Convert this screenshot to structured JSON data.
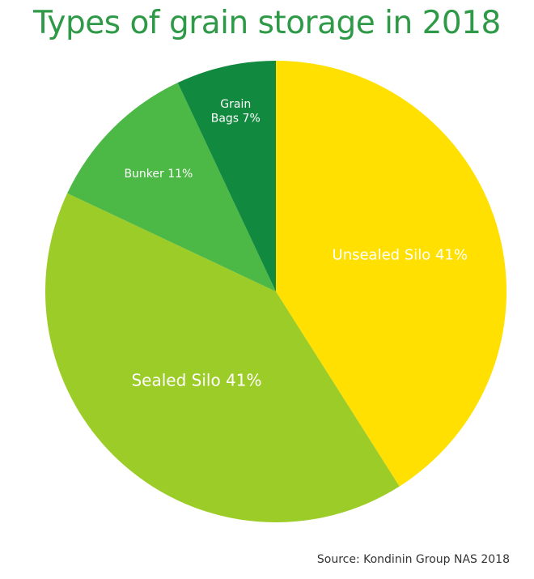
{
  "chart_data": {
    "type": "pie",
    "title": "Types of grain storage in 2018",
    "slices": [
      {
        "label": "Unsealed Silo",
        "value": 41,
        "display": "Unsealed Silo 41%",
        "color": "#ffe000"
      },
      {
        "label": "Sealed Silo",
        "value": 41,
        "display": "Sealed Silo 41%",
        "color": "#9ccc27"
      },
      {
        "label": "Bunker",
        "value": 11,
        "display": "Bunker 11%",
        "color": "#4cb845"
      },
      {
        "label": "Grain Bags",
        "value": 7,
        "display": "Grain Bags 7%",
        "color": "#11893e"
      }
    ],
    "source": "Source: Kondinin Group NAS 2018"
  }
}
